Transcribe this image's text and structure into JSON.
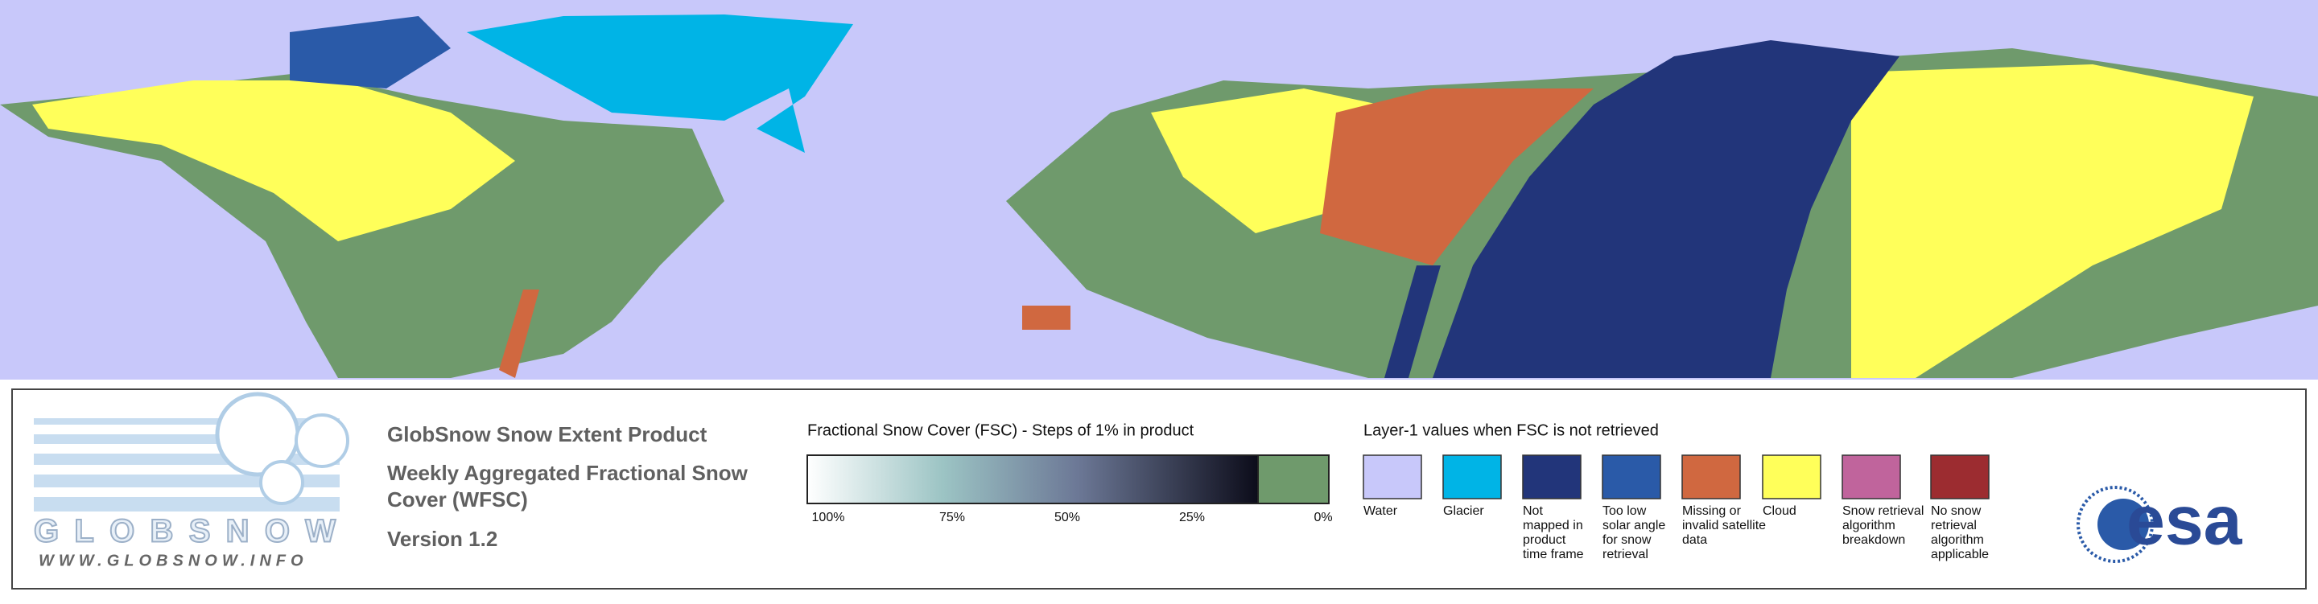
{
  "logo": {
    "name": "GLOBSNOW",
    "url": "WWW.GLOBSNOW.INFO"
  },
  "product": {
    "title": "GlobSnow Snow Extent Product",
    "subtitle_lines": [
      "Weekly Aggregated Fractional Snow",
      "Cover (WFSC)"
    ],
    "version": "Version 1.2"
  },
  "fsc_legend": {
    "title": "Fractional Snow Cover (FSC) - Steps of 1% in product",
    "ticks": [
      "100%",
      "75%",
      "50%",
      "25%",
      "0%"
    ]
  },
  "layer_legend": {
    "title": "Layer-1 values when FSC is not retrieved",
    "items": [
      {
        "color": "#c8c8fa",
        "label_lines": [
          "Water"
        ]
      },
      {
        "color": "#00b4e6",
        "label_lines": [
          "Glacier"
        ]
      },
      {
        "color": "#22357a",
        "label_lines": [
          "Not",
          "mapped in",
          "product",
          "time frame"
        ]
      },
      {
        "color": "#2a5aa8",
        "label_lines": [
          "Too low",
          "solar angle",
          "for snow",
          "retrieval"
        ]
      },
      {
        "color": "#d06840",
        "label_lines": [
          "Missing or",
          "invalid satellite",
          "data"
        ]
      },
      {
        "color": "#ffff5a",
        "label_lines": [
          "Cloud"
        ]
      },
      {
        "color": "#c0649c",
        "label_lines": [
          "Snow retrieval",
          "algorithm",
          "breakdown"
        ]
      },
      {
        "color": "#9c2c30",
        "label_lines": [
          "No snow",
          "retrieval",
          "algorithm",
          "applicable"
        ]
      }
    ]
  },
  "agency": "esa"
}
